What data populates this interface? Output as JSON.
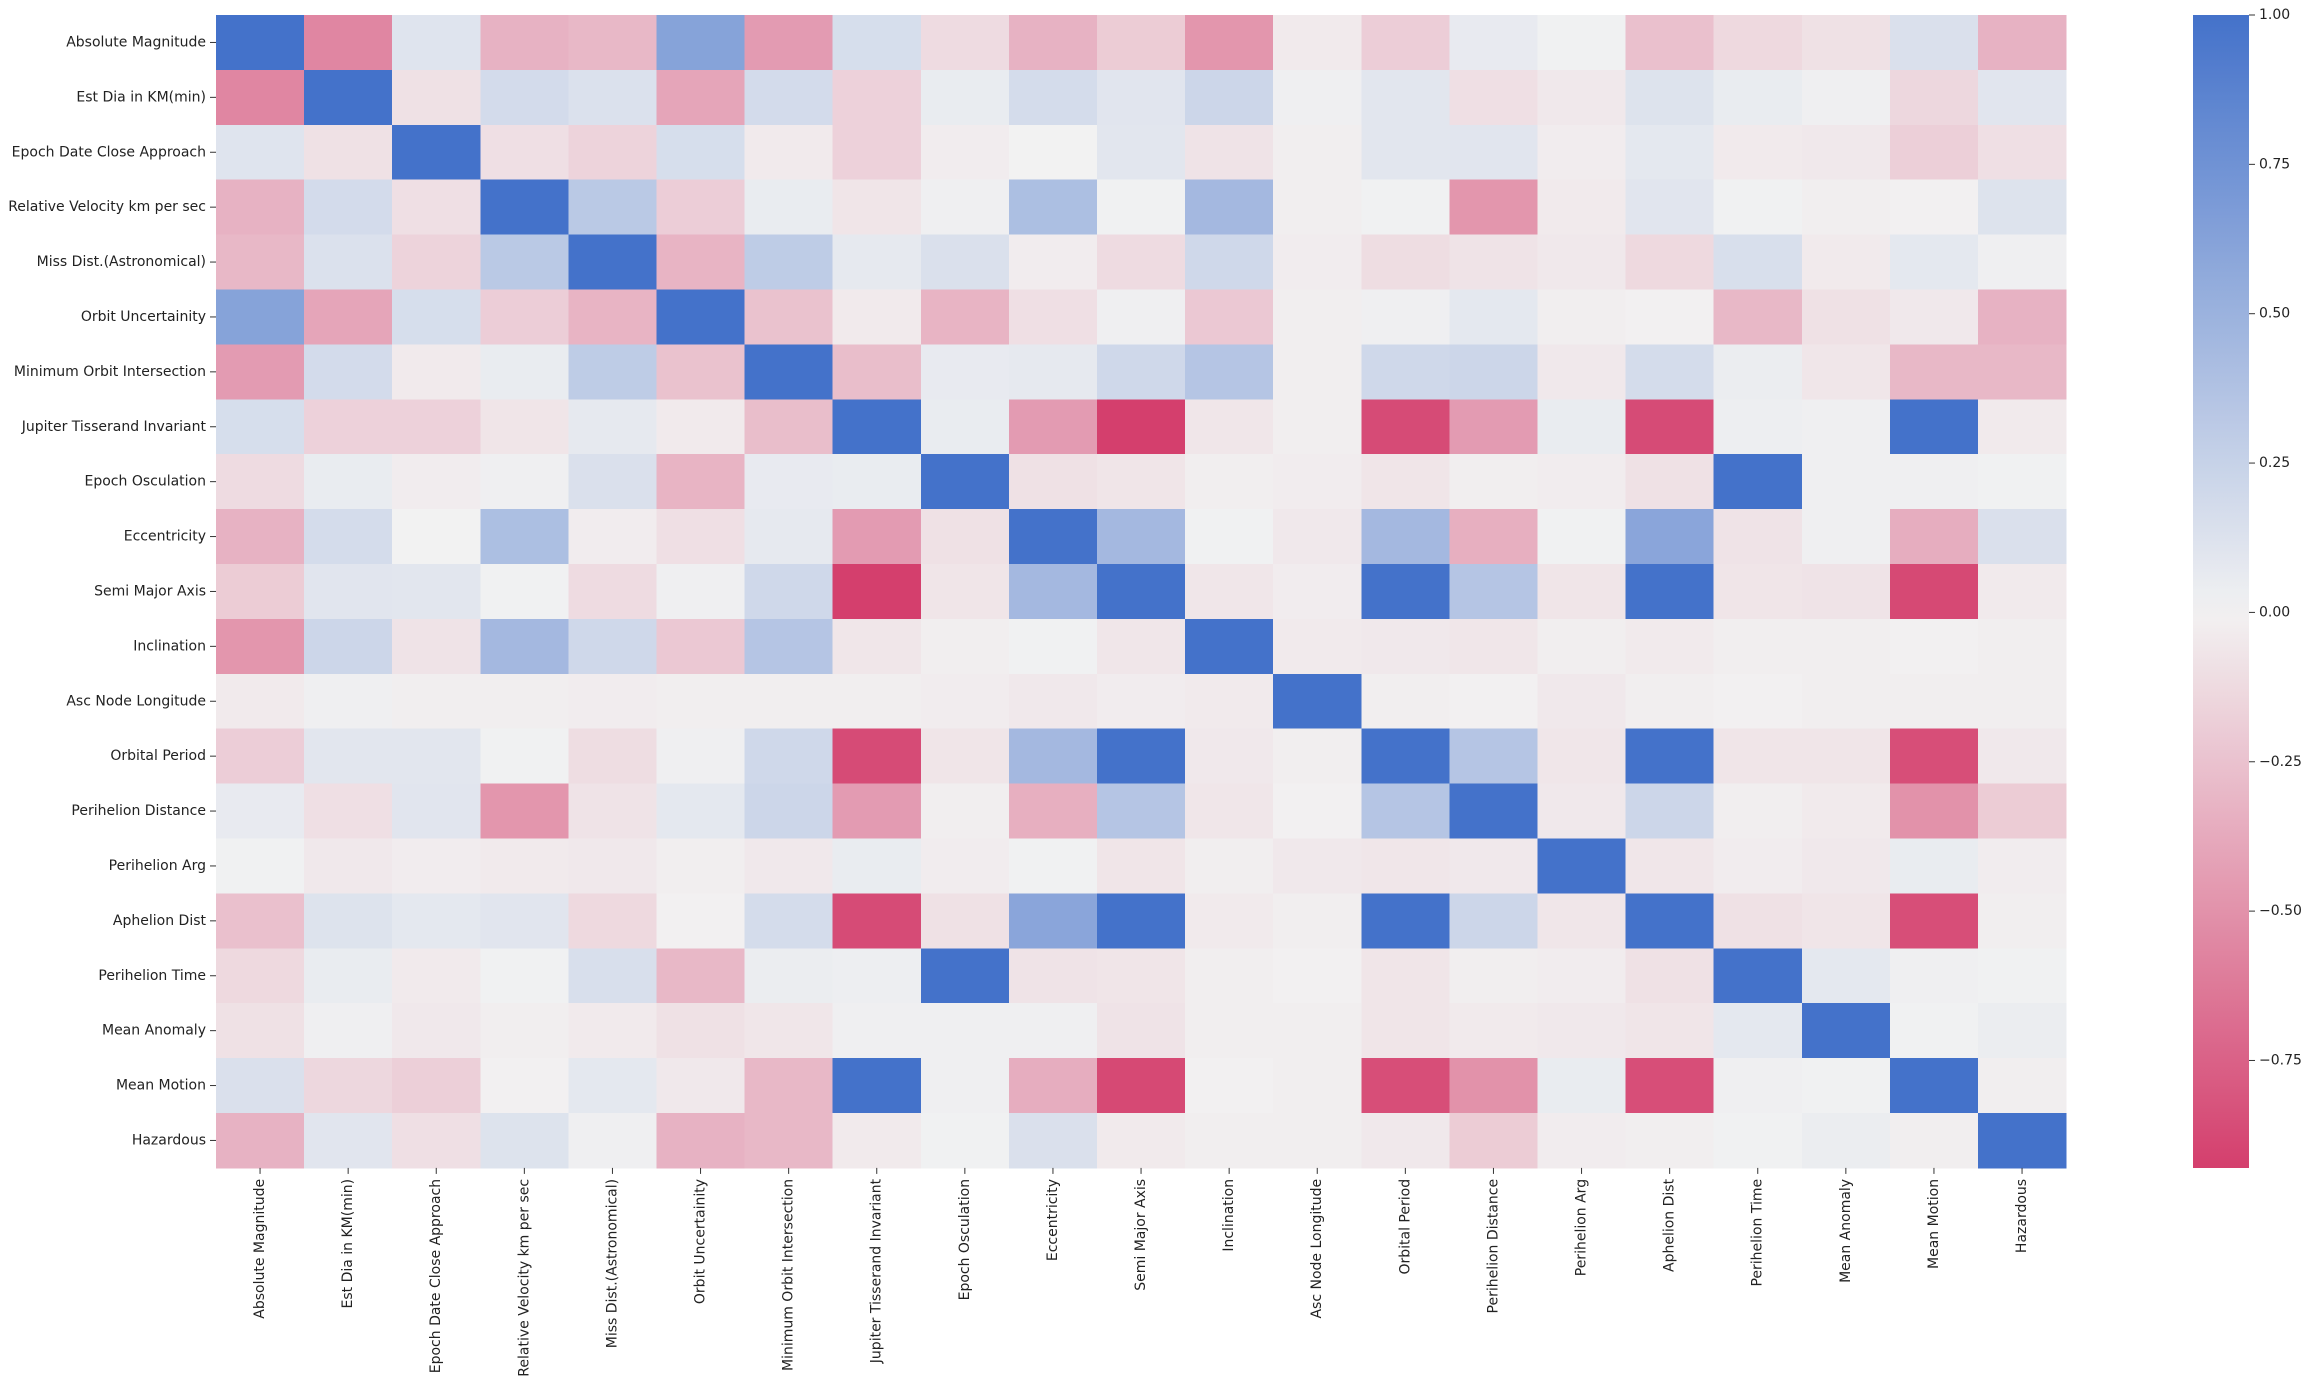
{
  "chart_data": {
    "type": "heatmap",
    "title": "",
    "xlabel": "",
    "ylabel": "",
    "labels": [
      "Absolute Magnitude",
      "Est Dia in KM(min)",
      "Epoch Date Close Approach",
      "Relative Velocity km per sec",
      "Miss Dist.(Astronomical)",
      "Orbit Uncertainity",
      "Minimum Orbit Intersection",
      "Jupiter Tisserand Invariant",
      "Epoch Osculation",
      "Eccentricity",
      "Semi Major Axis",
      "Inclination",
      "Asc Node Longitude",
      "Orbital Period",
      "Perihelion Distance",
      "Perihelion Arg",
      "Aphelion Dist",
      "Perihelion Time",
      "Mean Anomaly",
      "Mean Motion",
      "Hazardous"
    ],
    "matrix": [
      [
        1.0,
        -0.56,
        0.11,
        -0.33,
        -0.3,
        0.62,
        -0.45,
        0.16,
        -0.12,
        -0.33,
        -0.2,
        -0.48,
        -0.04,
        -0.19,
        0.06,
        0.01,
        -0.26,
        -0.13,
        -0.09,
        0.14,
        -0.33
      ],
      [
        -0.56,
        1.0,
        -0.09,
        0.18,
        0.13,
        -0.4,
        0.18,
        -0.17,
        0.05,
        0.17,
        0.1,
        0.22,
        0.02,
        0.09,
        -0.1,
        -0.05,
        0.12,
        0.05,
        0.02,
        -0.14,
        0.1
      ],
      [
        0.11,
        -0.09,
        1.0,
        -0.1,
        -0.16,
        0.16,
        -0.04,
        -0.17,
        -0.03,
        0.0,
        0.09,
        -0.08,
        -0.02,
        0.09,
        0.1,
        -0.03,
        0.08,
        -0.04,
        -0.05,
        -0.18,
        -0.1
      ],
      [
        -0.33,
        0.18,
        -0.1,
        1.0,
        0.32,
        -0.19,
        0.05,
        -0.07,
        0.02,
        0.4,
        0.01,
        0.45,
        -0.02,
        0.01,
        -0.48,
        -0.04,
        0.1,
        0.01,
        -0.02,
        -0.01,
        0.12
      ],
      [
        -0.3,
        0.13,
        -0.16,
        0.32,
        1.0,
        -0.32,
        0.3,
        0.07,
        0.14,
        -0.03,
        -0.12,
        0.2,
        -0.03,
        -0.11,
        -0.08,
        -0.05,
        -0.13,
        0.15,
        -0.04,
        0.08,
        0.02
      ],
      [
        0.62,
        -0.4,
        0.16,
        -0.19,
        -0.32,
        1.0,
        -0.25,
        -0.04,
        -0.32,
        -0.1,
        0.02,
        -0.22,
        -0.02,
        0.02,
        0.08,
        -0.02,
        -0.01,
        -0.3,
        -0.09,
        -0.05,
        -0.33
      ],
      [
        -0.45,
        0.18,
        -0.04,
        0.05,
        0.3,
        -0.25,
        1.0,
        -0.27,
        0.06,
        0.07,
        0.2,
        0.35,
        -0.02,
        0.2,
        0.22,
        -0.05,
        0.17,
        0.04,
        -0.06,
        -0.3,
        -0.3
      ],
      [
        0.16,
        -0.17,
        -0.17,
        -0.07,
        0.07,
        -0.04,
        -0.27,
        1.0,
        0.05,
        -0.45,
        -0.93,
        -0.06,
        -0.02,
        -0.87,
        -0.45,
        0.05,
        -0.87,
        0.03,
        0.02,
        1.0,
        -0.04
      ],
      [
        -0.12,
        0.05,
        -0.03,
        0.02,
        0.14,
        -0.32,
        0.06,
        0.05,
        1.0,
        -0.09,
        -0.07,
        -0.02,
        -0.03,
        -0.07,
        -0.02,
        -0.03,
        -0.09,
        1.0,
        0.02,
        0.02,
        0.01
      ],
      [
        -0.33,
        0.17,
        0.0,
        0.4,
        -0.03,
        -0.1,
        0.07,
        -0.45,
        -0.09,
        1.0,
        0.45,
        0.01,
        -0.05,
        0.45,
        -0.35,
        0.01,
        0.6,
        -0.08,
        0.02,
        -0.36,
        0.14
      ],
      [
        -0.2,
        0.1,
        0.09,
        0.01,
        -0.12,
        0.02,
        0.2,
        -0.93,
        -0.07,
        0.45,
        1.0,
        -0.06,
        -0.03,
        1.0,
        0.35,
        -0.07,
        1.0,
        -0.07,
        -0.08,
        -0.88,
        -0.04
      ],
      [
        -0.48,
        0.22,
        -0.08,
        0.45,
        0.2,
        -0.22,
        0.35,
        -0.06,
        -0.02,
        0.01,
        -0.06,
        1.0,
        -0.04,
        -0.05,
        -0.06,
        -0.02,
        -0.04,
        -0.02,
        -0.02,
        -0.01,
        -0.02
      ],
      [
        -0.04,
        0.02,
        -0.02,
        -0.02,
        -0.03,
        -0.02,
        -0.02,
        -0.02,
        -0.03,
        -0.05,
        -0.03,
        -0.04,
        1.0,
        -0.02,
        -0.01,
        -0.05,
        -0.02,
        -0.01,
        -0.02,
        -0.02,
        -0.02
      ],
      [
        -0.19,
        0.09,
        0.09,
        0.01,
        -0.11,
        0.02,
        0.2,
        -0.87,
        -0.07,
        0.45,
        1.0,
        -0.05,
        -0.02,
        1.0,
        0.35,
        -0.06,
        1.0,
        -0.07,
        -0.07,
        -0.85,
        -0.05
      ],
      [
        0.06,
        -0.1,
        0.1,
        -0.48,
        -0.08,
        0.08,
        0.22,
        -0.45,
        -0.02,
        -0.35,
        0.35,
        -0.06,
        -0.01,
        0.35,
        1.0,
        -0.05,
        0.22,
        -0.02,
        -0.04,
        -0.5,
        -0.2
      ],
      [
        0.01,
        -0.05,
        -0.03,
        -0.04,
        -0.05,
        -0.02,
        -0.05,
        0.05,
        -0.03,
        0.01,
        -0.07,
        -0.02,
        -0.05,
        -0.06,
        -0.05,
        1.0,
        -0.06,
        -0.03,
        -0.05,
        0.05,
        -0.03
      ],
      [
        -0.26,
        0.12,
        0.08,
        0.1,
        -0.13,
        -0.01,
        0.17,
        -0.87,
        -0.09,
        0.6,
        1.0,
        -0.04,
        -0.02,
        1.0,
        0.22,
        -0.06,
        1.0,
        -0.09,
        -0.07,
        -0.85,
        -0.02
      ],
      [
        -0.13,
        0.05,
        -0.04,
        0.01,
        0.15,
        -0.3,
        0.04,
        0.03,
        1.0,
        -0.08,
        -0.07,
        -0.02,
        -0.01,
        -0.07,
        -0.02,
        -0.03,
        -0.09,
        1.0,
        0.08,
        0.02,
        0.01
      ],
      [
        -0.09,
        0.02,
        -0.05,
        -0.02,
        -0.04,
        -0.09,
        -0.06,
        0.02,
        0.02,
        0.02,
        -0.08,
        -0.02,
        -0.02,
        -0.07,
        -0.04,
        -0.05,
        -0.07,
        0.08,
        1.0,
        0.01,
        0.04
      ],
      [
        0.14,
        -0.14,
        -0.18,
        -0.01,
        0.08,
        -0.05,
        -0.3,
        1.0,
        0.02,
        -0.36,
        -0.88,
        -0.01,
        -0.02,
        -0.85,
        -0.5,
        0.05,
        -0.85,
        0.02,
        0.01,
        1.0,
        -0.02
      ],
      [
        -0.33,
        0.1,
        -0.1,
        0.12,
        0.02,
        -0.33,
        -0.3,
        -0.04,
        0.01,
        0.14,
        -0.04,
        -0.02,
        -0.02,
        -0.05,
        -0.2,
        -0.03,
        -0.02,
        0.01,
        0.04,
        -0.02,
        1.0
      ]
    ],
    "colorbar": {
      "vmin": -0.93,
      "vmax": 1.0,
      "ticks": [
        1.0,
        0.75,
        0.5,
        0.25,
        0.0,
        -0.25,
        -0.5,
        -0.75
      ],
      "tick_labels": [
        "1.00",
        "0.75",
        "0.50",
        "0.25",
        "0.00",
        "−0.25",
        "−0.50",
        "−0.75"
      ]
    },
    "colors": {
      "negative": "#d43f6d",
      "neutral": "#f2f2f2",
      "positive": "#4472ca"
    },
    "grid": false,
    "legend": "colorbar-right"
  }
}
